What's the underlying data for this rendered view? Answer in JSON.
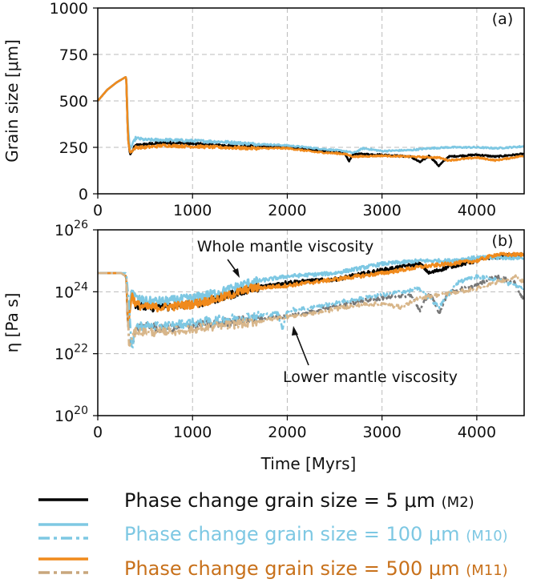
{
  "chart_data": [
    {
      "type": "line",
      "panel_label": "(a)",
      "ylabel": "Grain size [μm]",
      "xlabel": "",
      "xlim": [
        0,
        4500
      ],
      "ylim": [
        0,
        1000
      ],
      "xticks": [
        0,
        1000,
        2000,
        3000,
        4000
      ],
      "yticks": [
        0,
        250,
        500,
        750,
        1000
      ],
      "grid": true,
      "series": [
        {
          "name": "M2",
          "color": "#000000",
          "dash": "solid",
          "x": [
            0,
            100,
            200,
            300,
            320,
            340,
            400,
            500,
            700,
            1000,
            1300,
            1600,
            2000,
            2300,
            2600,
            2650,
            2700,
            3000,
            3300,
            3400,
            3500,
            3600,
            3700,
            4000,
            4200,
            4500
          ],
          "y": [
            500,
            560,
            600,
            630,
            300,
            210,
            260,
            265,
            275,
            270,
            260,
            255,
            250,
            235,
            220,
            175,
            215,
            210,
            200,
            170,
            205,
            150,
            200,
            210,
            200,
            215
          ]
        },
        {
          "name": "M10",
          "color": "#7ec8e3",
          "dash": "solid",
          "x": [
            0,
            100,
            200,
            300,
            320,
            340,
            400,
            500,
            700,
            1000,
            1300,
            1600,
            2000,
            2300,
            2600,
            2700,
            2800,
            3000,
            3300,
            3500,
            3700,
            4000,
            4200,
            4500
          ],
          "y": [
            500,
            560,
            600,
            630,
            350,
            240,
            300,
            290,
            290,
            285,
            280,
            270,
            260,
            245,
            230,
            220,
            245,
            230,
            235,
            245,
            250,
            250,
            245,
            255
          ]
        },
        {
          "name": "M11",
          "color": "#f08a1c",
          "dash": "solid",
          "x": [
            0,
            100,
            200,
            300,
            320,
            340,
            400,
            500,
            700,
            1000,
            1300,
            1600,
            2000,
            2300,
            2600,
            2700,
            3000,
            3300,
            3600,
            3700,
            4000,
            4200,
            4500
          ],
          "y": [
            500,
            560,
            600,
            630,
            290,
            220,
            250,
            250,
            260,
            255,
            250,
            245,
            245,
            225,
            215,
            200,
            205,
            200,
            195,
            180,
            195,
            180,
            205
          ]
        }
      ]
    },
    {
      "type": "line",
      "panel_label": "(b)",
      "ylabel": "η [Pa s]",
      "xlabel": "Time [Myrs]",
      "xlim": [
        0,
        4500
      ],
      "ylim_log10": [
        20,
        26
      ],
      "xticks": [
        0,
        1000,
        2000,
        3000,
        4000
      ],
      "yticks_base": "10",
      "yticks_exp": [
        "26",
        "24",
        "22",
        "20"
      ],
      "grid": true,
      "annotations": [
        {
          "text": "Whole mantle viscosity",
          "points_to_x": 1500,
          "points_to_log10y": 24.45
        },
        {
          "text": "Lower mantle viscosity",
          "points_to_x": 2100,
          "points_to_log10y": 23.0
        }
      ],
      "series": [
        {
          "name": "M2 whole",
          "color": "#000000",
          "dash": "solid",
          "x": [
            0,
            250,
            300,
            320,
            340,
            360,
            400,
            500,
            700,
            1000,
            1300,
            1600,
            2000,
            2500,
            3000,
            3400,
            3500,
            3700,
            4000,
            4100,
            4500
          ],
          "y": [
            24.6,
            24.6,
            24.5,
            22.8,
            23.5,
            24.0,
            23.6,
            23.5,
            23.5,
            23.6,
            23.8,
            24.1,
            24.3,
            24.4,
            24.7,
            24.9,
            24.6,
            24.8,
            25.0,
            25.1,
            25.2
          ]
        },
        {
          "name": "M10 whole",
          "color": "#7ec8e3",
          "dash": "solid",
          "x": [
            0,
            250,
            300,
            320,
            340,
            360,
            400,
            500,
            700,
            1000,
            1300,
            1600,
            2000,
            2500,
            3000,
            3400,
            3700,
            4000,
            4500
          ],
          "y": [
            24.6,
            24.6,
            24.5,
            23.2,
            23.7,
            24.1,
            23.8,
            23.7,
            23.7,
            23.8,
            24.0,
            24.3,
            24.5,
            24.6,
            24.9,
            25.0,
            25.0,
            25.1,
            25.1
          ]
        },
        {
          "name": "M11 whole",
          "color": "#f08a1c",
          "dash": "solid",
          "x": [
            0,
            250,
            300,
            320,
            340,
            360,
            400,
            500,
            700,
            1000,
            1300,
            1600,
            2000,
            2500,
            3000,
            3400,
            3700,
            4000,
            4200,
            4500
          ],
          "y": [
            24.6,
            24.6,
            24.5,
            22.9,
            23.4,
            23.9,
            23.6,
            23.5,
            23.5,
            23.6,
            23.8,
            24.1,
            24.2,
            24.4,
            24.6,
            24.8,
            24.9,
            25.0,
            25.2,
            25.2
          ]
        },
        {
          "name": "M2 lower",
          "color": "#777777",
          "dash": "dashdot",
          "x": [
            0,
            250,
            300,
            330,
            360,
            400,
            500,
            700,
            1000,
            1300,
            1600,
            2000,
            2300,
            2600,
            2800,
            3000,
            3300,
            3400,
            3500,
            3600,
            3700,
            4000,
            4200,
            4400,
            4500
          ],
          "y": [
            24.6,
            24.6,
            24.5,
            22.4,
            22.3,
            22.8,
            22.9,
            22.8,
            22.9,
            23.0,
            23.1,
            23.2,
            23.4,
            23.6,
            23.7,
            23.8,
            23.9,
            23.4,
            24.0,
            23.3,
            24.0,
            24.2,
            24.5,
            24.3,
            23.7
          ]
        },
        {
          "name": "M10 lower",
          "color": "#7ec8e3",
          "dash": "dashdot",
          "x": [
            0,
            250,
            300,
            330,
            360,
            400,
            500,
            700,
            1000,
            1300,
            1600,
            1900,
            1950,
            2000,
            2300,
            2600,
            3000,
            3400,
            3600,
            3800,
            4000,
            4200,
            4500
          ],
          "y": [
            24.6,
            24.6,
            24.6,
            23.6,
            22.0,
            22.9,
            22.9,
            22.9,
            23.0,
            23.1,
            23.2,
            23.3,
            22.8,
            23.4,
            23.5,
            23.7,
            23.9,
            24.1,
            23.5,
            24.3,
            24.5,
            24.4,
            24.1
          ]
        },
        {
          "name": "M11 lower",
          "color": "#d8b68a",
          "dash": "dashdot",
          "x": [
            0,
            250,
            300,
            330,
            360,
            400,
            500,
            700,
            1000,
            1300,
            1600,
            2000,
            2300,
            2600,
            2800,
            3000,
            3200,
            3400,
            3600,
            3800,
            4000,
            4200,
            4400,
            4500
          ],
          "y": [
            24.6,
            24.6,
            24.5,
            22.2,
            22.5,
            22.7,
            22.7,
            22.7,
            22.8,
            22.9,
            23.0,
            23.2,
            23.3,
            23.5,
            23.6,
            23.6,
            23.5,
            23.8,
            23.9,
            24.0,
            24.1,
            24.3,
            24.5,
            24.3
          ]
        }
      ]
    }
  ],
  "legend": [
    {
      "text": "Phase change grain size = 5 μm",
      "model": "(M2)",
      "color": "#111111",
      "swatch_solid": "#000000",
      "swatch_dash": ""
    },
    {
      "text": "Phase change grain size = 100 μm",
      "model": "(M10)",
      "color": "#7ec8e3",
      "swatch_solid": "#7ec8e3",
      "swatch_dash": "#7ec8e3"
    },
    {
      "text": "Phase change grain size = 500 μm",
      "model": "(M11)",
      "color": "#c8711b",
      "swatch_solid": "#f08a1c",
      "swatch_dash": "#c8a67c"
    }
  ]
}
